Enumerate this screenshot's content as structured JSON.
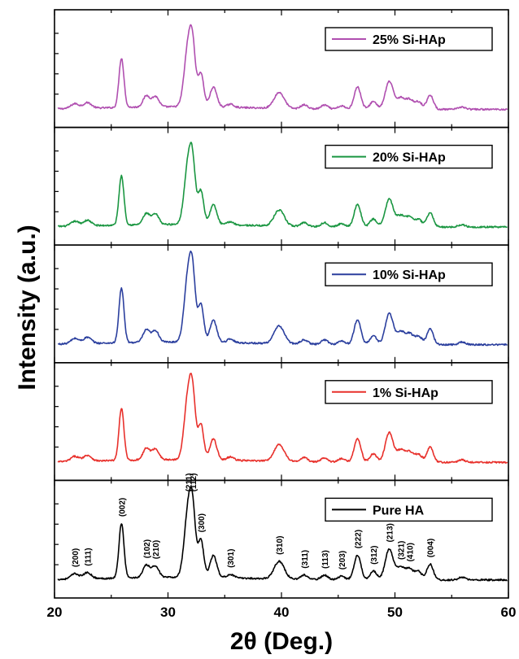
{
  "chart_data": {
    "type": "line",
    "title": "",
    "xlabel": "2θ (Deg.)",
    "ylabel": "Intensity (a.u.)",
    "xlim": [
      20,
      60
    ],
    "xticks": [
      20,
      30,
      40,
      50,
      60
    ],
    "grid": false,
    "layout": "stacked panels, one series per panel, legend at top-right of each panel",
    "peaks": [
      {
        "pos": 21.8,
        "h": 0.06,
        "w": 0.35
      },
      {
        "pos": 22.9,
        "h": 0.07,
        "w": 0.35
      },
      {
        "pos": 25.9,
        "h": 0.62,
        "w": 0.22
      },
      {
        "pos": 28.1,
        "h": 0.14,
        "w": 0.3
      },
      {
        "pos": 28.9,
        "h": 0.13,
        "w": 0.3
      },
      {
        "pos": 31.8,
        "h": 0.78,
        "w": 0.35
      },
      {
        "pos": 32.2,
        "h": 0.5,
        "w": 0.25
      },
      {
        "pos": 32.9,
        "h": 0.42,
        "w": 0.25
      },
      {
        "pos": 34.0,
        "h": 0.25,
        "w": 0.3
      },
      {
        "pos": 35.5,
        "h": 0.04,
        "w": 0.3
      },
      {
        "pos": 39.8,
        "h": 0.2,
        "w": 0.45
      },
      {
        "pos": 42.0,
        "h": 0.05,
        "w": 0.3
      },
      {
        "pos": 43.8,
        "h": 0.05,
        "w": 0.3
      },
      {
        "pos": 45.3,
        "h": 0.04,
        "w": 0.3
      },
      {
        "pos": 46.7,
        "h": 0.28,
        "w": 0.3
      },
      {
        "pos": 48.1,
        "h": 0.1,
        "w": 0.3
      },
      {
        "pos": 49.5,
        "h": 0.35,
        "w": 0.35
      },
      {
        "pos": 50.5,
        "h": 0.14,
        "w": 0.35
      },
      {
        "pos": 51.3,
        "h": 0.12,
        "w": 0.35
      },
      {
        "pos": 52.1,
        "h": 0.09,
        "w": 0.3
      },
      {
        "pos": 53.1,
        "h": 0.18,
        "w": 0.28
      },
      {
        "pos": 55.9,
        "h": 0.03,
        "w": 0.3
      }
    ],
    "series": [
      {
        "name": "25% Si-HAp",
        "color": "#b04fb0",
        "scale": 0.9
      },
      {
        "name": "20% Si-HAp",
        "color": "#1a9641",
        "scale": 0.9
      },
      {
        "name": "10% Si-HAp",
        "color": "#2b3f9e",
        "scale": 1.0
      },
      {
        "name": "1% Si-HAp",
        "color": "#e8302b",
        "scale": 0.95
      },
      {
        "name": "Pure HA",
        "color": "#000000",
        "scale": 1.0
      }
    ],
    "annotations": [
      {
        "label": "(200)",
        "x": 21.8
      },
      {
        "label": "(111)",
        "x": 22.9
      },
      {
        "label": "(002)",
        "x": 25.9
      },
      {
        "label": "(102)",
        "x": 28.1
      },
      {
        "label": "(210)",
        "x": 28.9
      },
      {
        "label": "(211)",
        "x": 31.8
      },
      {
        "label": "(112)",
        "x": 32.2
      },
      {
        "label": "(300)",
        "x": 32.9
      },
      {
        "label": "(301)",
        "x": 35.5
      },
      {
        "label": "(310)",
        "x": 39.8
      },
      {
        "label": "(311)",
        "x": 42.0
      },
      {
        "label": "(113)",
        "x": 43.8
      },
      {
        "label": "(203)",
        "x": 45.3
      },
      {
        "label": "(222)",
        "x": 46.7
      },
      {
        "label": "(312)",
        "x": 48.1
      },
      {
        "label": "(213)",
        "x": 49.5
      },
      {
        "label": "(321)",
        "x": 50.5
      },
      {
        "label": "(410)",
        "x": 51.3
      },
      {
        "label": "(004)",
        "x": 53.1
      }
    ]
  }
}
